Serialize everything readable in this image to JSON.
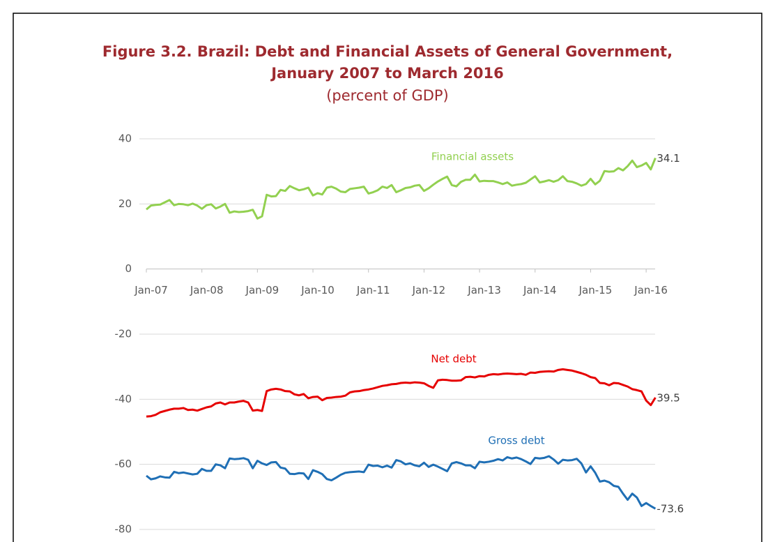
{
  "chart_data": {
    "type": "line",
    "title": "Figure 3.2. Brazil: Debt and Financial Assets of General Government,",
    "title_line2": "January 2007 to March 2016",
    "subtitle": "(percent of GDP)",
    "categories": [
      "Jan-07",
      null,
      null,
      null,
      null,
      null,
      null,
      null,
      null,
      null,
      null,
      null,
      "Jan-08",
      null,
      null,
      null,
      null,
      null,
      null,
      null,
      null,
      null,
      null,
      null,
      "Jan-09",
      null,
      null,
      null,
      null,
      null,
      null,
      null,
      null,
      null,
      null,
      null,
      "Jan-10",
      null,
      null,
      null,
      null,
      null,
      null,
      null,
      null,
      null,
      null,
      null,
      "Jan-11",
      null,
      null,
      null,
      null,
      null,
      null,
      null,
      null,
      null,
      null,
      null,
      "Jan-12",
      null,
      null,
      null,
      null,
      null,
      null,
      null,
      null,
      null,
      null,
      null,
      "Jan-13",
      null,
      null,
      null,
      null,
      null,
      null,
      null,
      null,
      null,
      null,
      null,
      "Jan-14",
      null,
      null,
      null,
      null,
      null,
      null,
      null,
      null,
      null,
      null,
      null,
      "Jan-15",
      null,
      null,
      null,
      null,
      null,
      null,
      null,
      null,
      null,
      null,
      null,
      "Jan-16",
      null,
      null
    ],
    "ylim": [
      -80,
      40
    ],
    "yticks": [
      40,
      20,
      0,
      -20,
      -40,
      -60,
      -80
    ],
    "grid": true,
    "series": [
      {
        "name": "Financial assets",
        "color": "#92d050",
        "values": [
          18.3,
          19.5,
          19.7,
          19.8,
          20.5,
          21.2,
          19.6,
          20.0,
          19.9,
          19.6,
          20.1,
          19.5,
          18.5,
          19.6,
          19.9,
          18.6,
          19.2,
          20.0,
          17.3,
          17.7,
          17.5,
          17.6,
          17.8,
          18.2,
          15.5,
          16.2,
          22.8,
          22.3,
          22.4,
          24.3,
          24.0,
          25.5,
          24.8,
          24.2,
          24.5,
          25.0,
          22.6,
          23.3,
          22.9,
          25.0,
          25.3,
          24.7,
          23.8,
          23.6,
          24.6,
          24.8,
          25.0,
          25.3,
          23.2,
          23.6,
          24.2,
          25.3,
          24.9,
          25.8,
          23.6,
          24.2,
          24.9,
          25.1,
          25.6,
          25.8,
          24.0,
          24.8,
          25.9,
          26.9,
          27.7,
          28.4,
          25.8,
          25.4,
          26.8,
          27.4,
          27.4,
          29.0,
          26.9,
          27.1,
          27.0,
          27.0,
          26.6,
          26.1,
          26.6,
          25.6,
          25.9,
          26.1,
          26.5,
          27.5,
          28.5,
          26.6,
          26.9,
          27.3,
          26.8,
          27.3,
          28.5,
          27.0,
          26.8,
          26.3,
          25.6,
          26.1,
          27.7,
          26.0,
          27.1,
          30.1,
          29.9,
          30.0,
          31.0,
          30.3,
          31.6,
          33.3,
          31.3,
          31.8,
          32.6,
          30.6,
          34.1
        ]
      },
      {
        "name": "Net debt",
        "color": "#e60000",
        "values": [
          -45.3,
          -45.2,
          -44.8,
          -44.0,
          -43.6,
          -43.2,
          -42.9,
          -42.9,
          -42.7,
          -43.3,
          -43.2,
          -43.5,
          -43.0,
          -42.5,
          -42.2,
          -41.3,
          -41.0,
          -41.6,
          -41.0,
          -41.0,
          -40.7,
          -40.5,
          -41.0,
          -43.5,
          -43.3,
          -43.6,
          -37.5,
          -37.0,
          -36.8,
          -37.0,
          -37.5,
          -37.6,
          -38.5,
          -38.8,
          -38.4,
          -39.7,
          -39.3,
          -39.2,
          -40.3,
          -39.6,
          -39.5,
          -39.3,
          -39.2,
          -38.9,
          -37.9,
          -37.6,
          -37.5,
          -37.2,
          -37.0,
          -36.7,
          -36.3,
          -35.9,
          -35.7,
          -35.4,
          -35.3,
          -35.0,
          -34.9,
          -35.0,
          -34.8,
          -34.9,
          -35.1,
          -35.9,
          -36.5,
          -34.2,
          -34.0,
          -34.1,
          -34.3,
          -34.3,
          -34.2,
          -33.2,
          -33.1,
          -33.3,
          -32.9,
          -33.0,
          -32.5,
          -32.3,
          -32.4,
          -32.2,
          -32.1,
          -32.2,
          -32.3,
          -32.2,
          -32.5,
          -31.8,
          -31.9,
          -31.6,
          -31.5,
          -31.4,
          -31.5,
          -31.0,
          -30.8,
          -31.0,
          -31.2,
          -31.6,
          -32.0,
          -32.5,
          -33.2,
          -33.5,
          -35.0,
          -35.1,
          -35.7,
          -35.0,
          -35.1,
          -35.6,
          -36.1,
          -36.9,
          -37.2,
          -37.6,
          -40.4,
          -41.8,
          -39.5
        ],
        "value_labels": [
          null,
          null,
          null,
          null,
          null,
          null,
          null,
          null,
          null,
          null,
          null,
          null,
          null,
          null,
          null,
          null,
          null,
          null,
          null,
          null,
          null,
          null,
          null,
          null,
          null,
          null,
          null,
          null,
          null,
          null,
          null,
          null,
          null,
          null,
          null,
          null,
          null,
          null,
          null,
          null,
          null,
          null,
          null,
          null,
          null,
          null,
          null,
          null,
          null,
          null,
          null,
          null,
          null,
          null,
          null,
          null,
          null,
          null,
          null,
          null,
          null,
          null,
          null,
          null,
          null,
          null,
          null,
          null,
          null,
          null,
          null,
          null,
          null,
          null,
          null,
          null,
          null,
          null,
          null,
          null,
          null,
          null,
          null,
          null,
          null,
          null,
          null,
          null,
          null,
          null,
          null,
          null,
          null,
          null,
          null,
          null,
          null,
          null,
          null,
          null,
          null,
          null,
          null,
          null,
          null,
          null,
          null,
          null,
          null,
          null,
          "39.5"
        ]
      },
      {
        "name": "Gross debt",
        "color": "#1f6fb5",
        "values": [
          -63.5,
          -64.6,
          -64.3,
          -63.7,
          -64.0,
          -64.1,
          -62.3,
          -62.7,
          -62.5,
          -62.8,
          -63.1,
          -62.9,
          -61.4,
          -62.0,
          -62.0,
          -60.0,
          -60.3,
          -61.2,
          -58.2,
          -58.4,
          -58.3,
          -58.1,
          -58.6,
          -61.2,
          -58.9,
          -59.7,
          -60.2,
          -59.4,
          -59.3,
          -61.0,
          -61.3,
          -62.9,
          -63.0,
          -62.7,
          -62.8,
          -64.5,
          -61.8,
          -62.3,
          -63.0,
          -64.5,
          -64.9,
          -64.1,
          -63.2,
          -62.6,
          -62.4,
          -62.3,
          -62.2,
          -62.4,
          -60.1,
          -60.5,
          -60.4,
          -60.9,
          -60.4,
          -61.0,
          -58.7,
          -59.1,
          -60.0,
          -59.7,
          -60.3,
          -60.6,
          -59.5,
          -60.8,
          -60.1,
          -60.7,
          -61.4,
          -62.1,
          -59.7,
          -59.3,
          -59.7,
          -60.3,
          -60.3,
          -61.2,
          -59.2,
          -59.4,
          -59.2,
          -58.9,
          -58.4,
          -58.8,
          -57.8,
          -58.2,
          -57.9,
          -58.4,
          -59.1,
          -59.9,
          -58.0,
          -58.2,
          -58.0,
          -57.5,
          -58.5,
          -59.8,
          -58.6,
          -58.8,
          -58.7,
          -58.3,
          -59.7,
          -62.5,
          -60.6,
          -62.6,
          -65.3,
          -65.0,
          -65.5,
          -66.6,
          -66.9,
          -69.0,
          -70.9,
          -69.0,
          -70.2,
          -72.8,
          -71.9,
          -72.8,
          -73.6
        ],
        "value_labels": [
          null,
          null,
          null,
          null,
          null,
          null,
          null,
          null,
          null,
          null,
          null,
          null,
          null,
          null,
          null,
          null,
          null,
          null,
          null,
          null,
          null,
          null,
          null,
          null,
          null,
          null,
          null,
          null,
          null,
          null,
          null,
          null,
          null,
          null,
          null,
          null,
          null,
          null,
          null,
          null,
          null,
          null,
          null,
          null,
          null,
          null,
          null,
          null,
          null,
          null,
          null,
          null,
          null,
          null,
          null,
          null,
          null,
          null,
          null,
          null,
          null,
          null,
          null,
          null,
          null,
          null,
          null,
          null,
          null,
          null,
          null,
          null,
          null,
          null,
          null,
          null,
          null,
          null,
          null,
          null,
          null,
          null,
          null,
          null,
          null,
          null,
          null,
          null,
          null,
          null,
          null,
          null,
          null,
          null,
          null,
          null,
          null,
          null,
          null,
          null,
          null,
          null,
          null,
          null,
          null,
          null,
          null,
          null,
          null,
          null,
          "-73.6"
        ]
      }
    ]
  }
}
